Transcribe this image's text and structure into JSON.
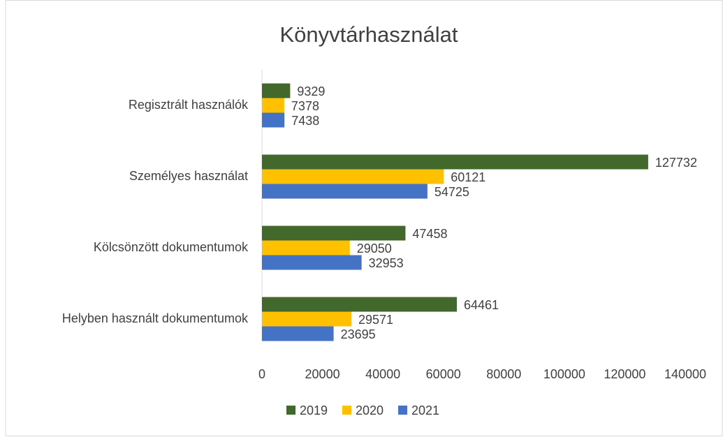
{
  "chart_data": {
    "type": "bar",
    "orientation": "horizontal",
    "title": "Könyvtárhasználat",
    "categories": [
      "Regisztrált használók",
      "Személyes használat",
      "Kölcsönzött dokumentumok",
      "Helyben használt dokumentumok"
    ],
    "series": [
      {
        "name": "2019",
        "color": "#43682b",
        "values": [
          9329,
          127732,
          47458,
          64461
        ]
      },
      {
        "name": "2020",
        "color": "#ffc000",
        "values": [
          7378,
          60121,
          29050,
          29571
        ]
      },
      {
        "name": "2021",
        "color": "#4472c4",
        "values": [
          7438,
          54725,
          32953,
          23695
        ]
      }
    ],
    "xlim": [
      0,
      140000
    ],
    "xticks": [
      0,
      20000,
      40000,
      60000,
      80000,
      100000,
      120000,
      140000
    ],
    "grid": false,
    "legend": "bottom"
  }
}
